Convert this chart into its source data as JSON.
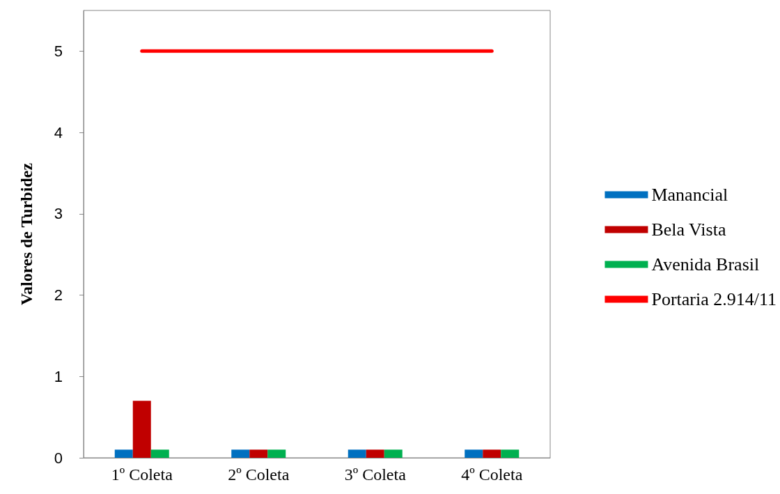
{
  "chart_data": {
    "type": "bar",
    "ylabel": "Valores de Turbidez",
    "categories": [
      "1º Coleta",
      "2º Coleta",
      "3º Coleta",
      "4º Coleta"
    ],
    "series": [
      {
        "name": "Manancial",
        "color": "#0070c0",
        "values": [
          0.1,
          0.1,
          0.1,
          0.1
        ]
      },
      {
        "name": "Bela Vista",
        "color": "#c00000",
        "values": [
          0.7,
          0.1,
          0.1,
          0.1
        ]
      },
      {
        "name": "Avenida Brasil",
        "color": "#00b050",
        "values": [
          0.1,
          0.1,
          0.1,
          0.1
        ]
      },
      {
        "name": "Portaria 2.914/11",
        "type": "line",
        "color": "#ff0000",
        "values": [
          5,
          5,
          5,
          5
        ]
      }
    ],
    "ylim": [
      0,
      5.5
    ],
    "yticks": [
      0,
      1,
      2,
      3,
      4,
      5
    ],
    "grid": false,
    "legend": "right",
    "marker": "none"
  }
}
